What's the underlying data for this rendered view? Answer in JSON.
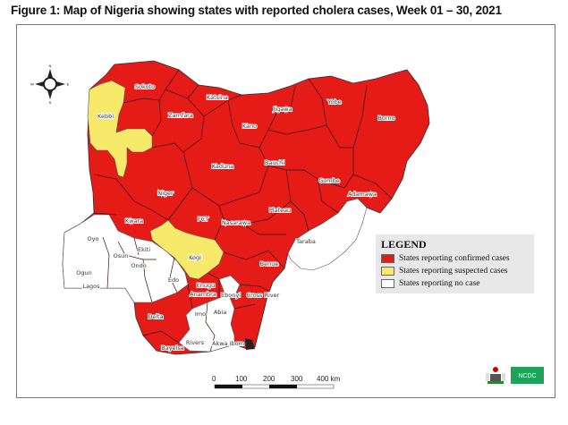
{
  "title": "Figure 1: Map of Nigeria showing states with reported cholera cases, Week 01 – 30, 2021",
  "colors": {
    "confirmed": "#e41b17",
    "suspected": "#f7ea6b",
    "no_case": "#ffffff",
    "legend_bg": "#e8e8e8"
  },
  "compass": {
    "icon": "north-arrow-compass-icon",
    "n": "N",
    "s": "S",
    "e": "E",
    "w": "W"
  },
  "legend": {
    "title": "LEGEND",
    "items": [
      {
        "label": "States reporting confirmed cases",
        "status": "confirmed"
      },
      {
        "label": "States reporting suspected cases",
        "status": "suspected"
      },
      {
        "label": "States reporting no case",
        "status": "no_case"
      }
    ]
  },
  "states": [
    {
      "name": "Sokoto",
      "status": "confirmed"
    },
    {
      "name": "Kebbi",
      "status": "suspected"
    },
    {
      "name": "Zamfara",
      "status": "confirmed"
    },
    {
      "name": "Katsina",
      "status": "confirmed"
    },
    {
      "name": "Kano",
      "status": "confirmed"
    },
    {
      "name": "Jigawa",
      "status": "confirmed"
    },
    {
      "name": "Yobe",
      "status": "confirmed"
    },
    {
      "name": "Borno",
      "status": "confirmed"
    },
    {
      "name": "Kaduna",
      "status": "confirmed"
    },
    {
      "name": "Bauchi",
      "status": "confirmed"
    },
    {
      "name": "Gombe",
      "status": "confirmed"
    },
    {
      "name": "Adamawa",
      "status": "confirmed"
    },
    {
      "name": "Niger",
      "status": "confirmed"
    },
    {
      "name": "FCT",
      "status": "confirmed"
    },
    {
      "name": "Nasarawa",
      "status": "confirmed"
    },
    {
      "name": "Plateau",
      "status": "confirmed"
    },
    {
      "name": "Taraba",
      "status": "no_case"
    },
    {
      "name": "Kwara",
      "status": "confirmed"
    },
    {
      "name": "Oyo",
      "status": "no_case"
    },
    {
      "name": "Osun",
      "status": "no_case"
    },
    {
      "name": "Ekiti",
      "status": "no_case"
    },
    {
      "name": "Ondo",
      "status": "no_case"
    },
    {
      "name": "Ogun",
      "status": "no_case"
    },
    {
      "name": "Lagos",
      "status": "no_case"
    },
    {
      "name": "Kogi",
      "status": "suspected"
    },
    {
      "name": "Edo",
      "status": "no_case"
    },
    {
      "name": "Benue",
      "status": "confirmed"
    },
    {
      "name": "Enugu",
      "status": "confirmed"
    },
    {
      "name": "Anambra",
      "status": "confirmed"
    },
    {
      "name": "Ebonyi",
      "status": "no_case"
    },
    {
      "name": "Cross River",
      "status": "confirmed"
    },
    {
      "name": "Imo",
      "status": "no_case"
    },
    {
      "name": "Abia",
      "status": "no_case"
    },
    {
      "name": "Delta",
      "status": "confirmed"
    },
    {
      "name": "Bayelsa",
      "status": "confirmed"
    },
    {
      "name": "Rivers",
      "status": "no_case"
    },
    {
      "name": "Akwa Ibom",
      "status": "no_case"
    }
  ],
  "scale_bar": {
    "ticks": [
      "0",
      "100",
      "200",
      "300",
      "400 km"
    ]
  },
  "logos": {
    "coat_of_arms": "nigeria-coat-of-arms",
    "ncdc": "NCDC"
  }
}
